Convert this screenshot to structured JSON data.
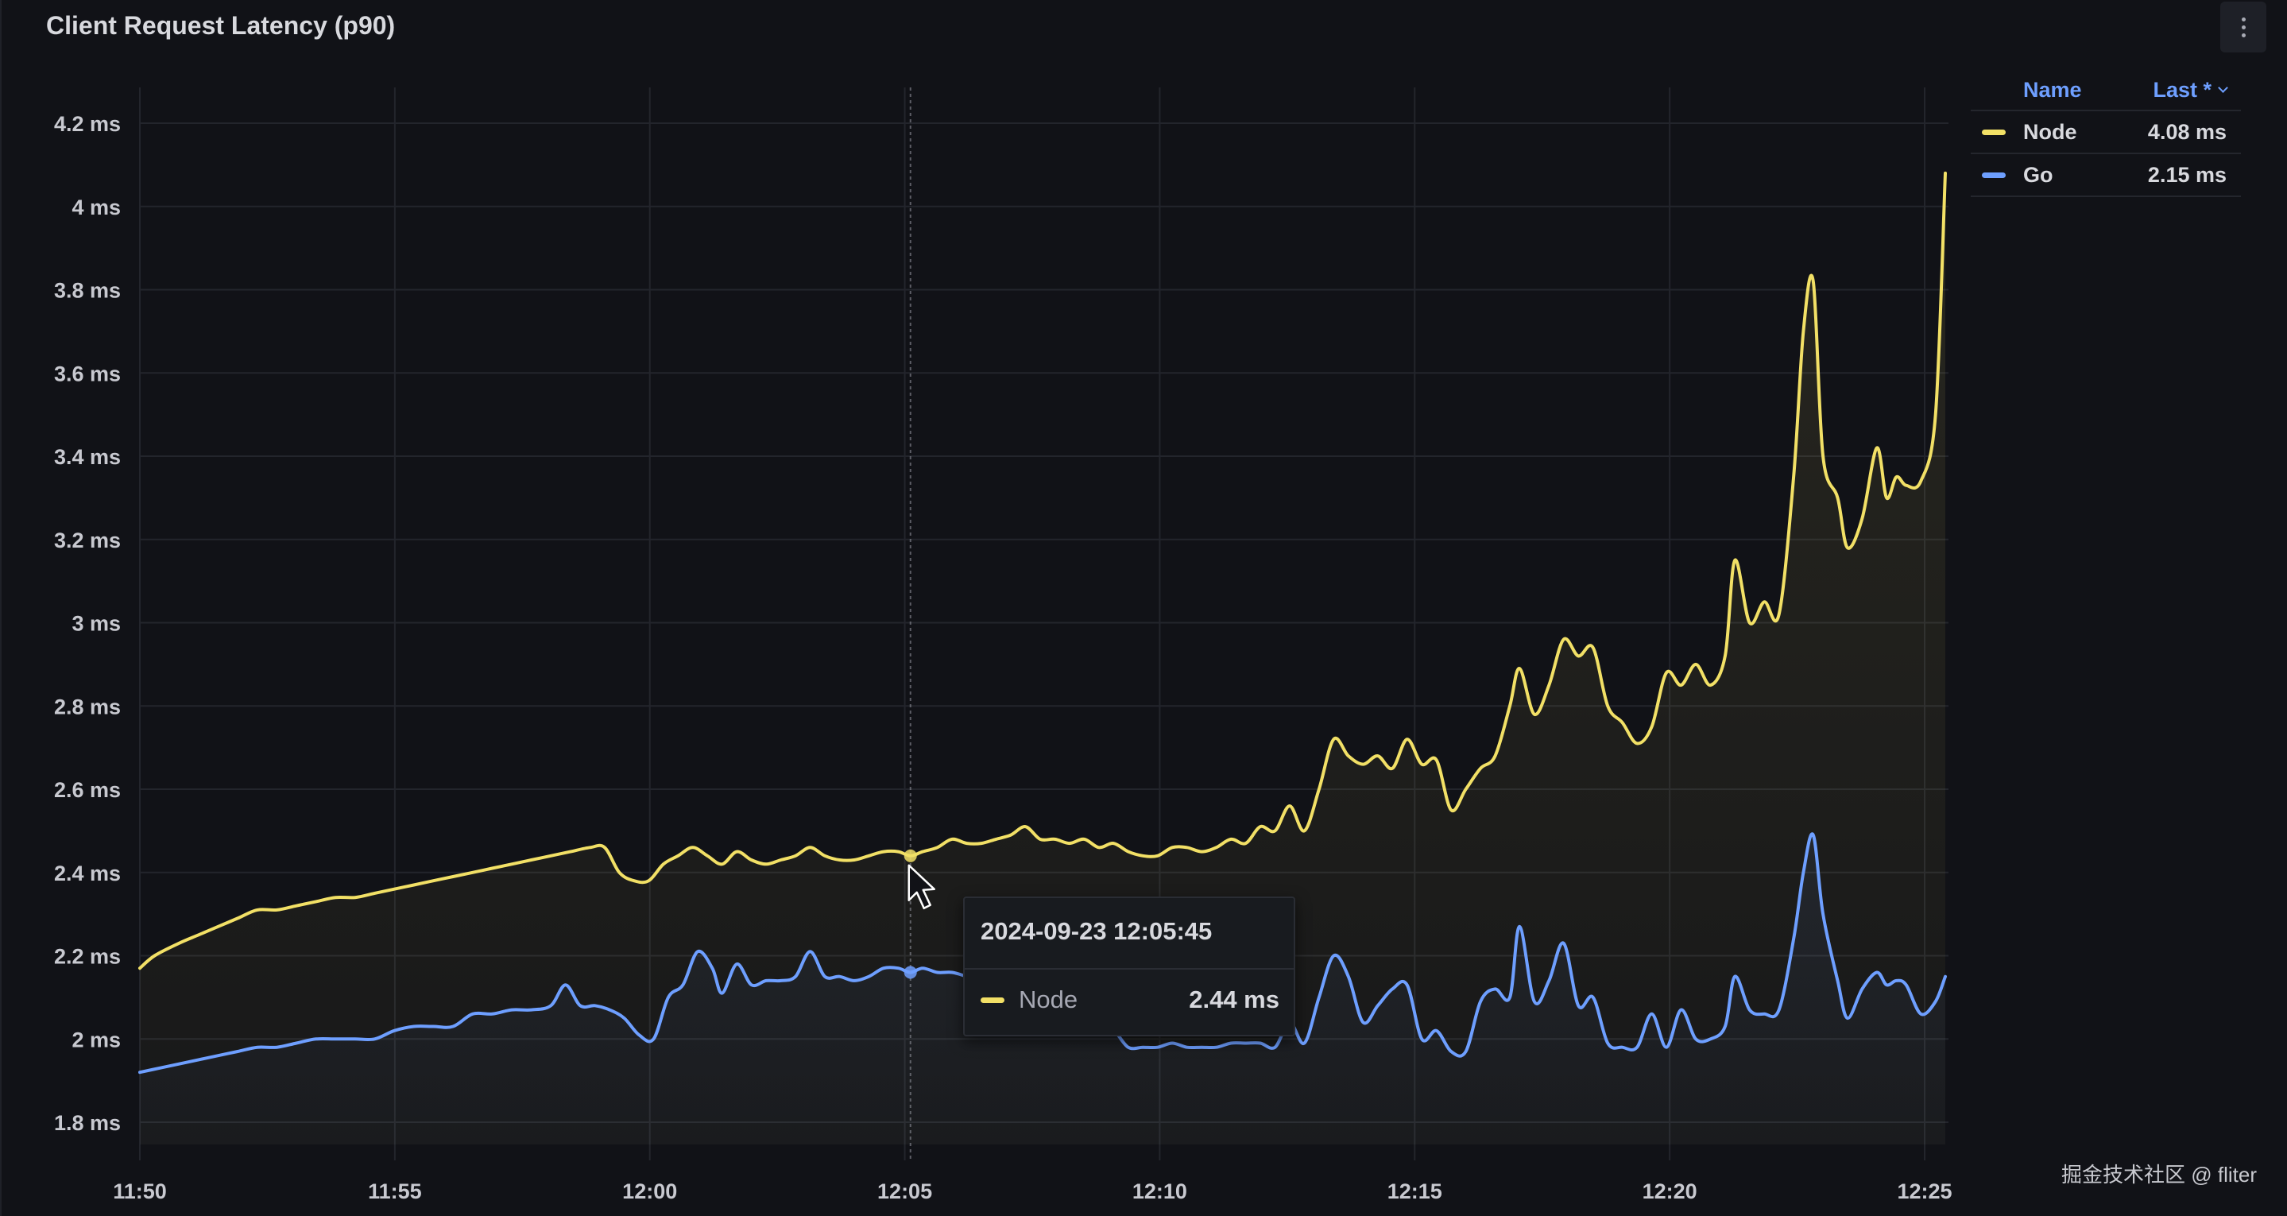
{
  "panel": {
    "title": "Client Request Latency (p90)",
    "menu_icon": "kebab-menu-icon"
  },
  "legend": {
    "name_header": "Name",
    "last_header": "Last *",
    "sort_icon": "chevron-down-icon",
    "items": [
      {
        "name": "Node",
        "value": "4.08 ms",
        "color": "#f2e066"
      },
      {
        "name": "Go",
        "value": "2.15 ms",
        "color": "#6e9fff"
      }
    ]
  },
  "tooltip": {
    "time": "2024-09-23 12:05:45",
    "series": "Node",
    "value": "2.44 ms",
    "color": "#f2e066"
  },
  "watermark": "掘金技术社区 @ fliter",
  "colors": {
    "background": "#111217",
    "grid": "#24262d",
    "node": "#f2e066",
    "go": "#6e9fff",
    "header_accent": "#6e9fff"
  },
  "chart_data": {
    "type": "line",
    "title": "Client Request Latency (p90)",
    "xlabel": "",
    "ylabel": "",
    "x_ticks": [
      "11:50",
      "11:55",
      "12:00",
      "12:05",
      "12:10",
      "12:15",
      "12:20",
      "12:25"
    ],
    "x_tick_minutes": [
      0,
      5,
      10,
      15,
      20,
      25,
      30,
      35
    ],
    "y_ticks": [
      "1.8 ms",
      "2 ms",
      "2.2 ms",
      "2.4 ms",
      "2.6 ms",
      "2.8 ms",
      "3 ms",
      "3.2 ms",
      "3.4 ms",
      "3.6 ms",
      "3.8 ms",
      "4 ms",
      "4.2 ms"
    ],
    "y_tick_values": [
      1.8,
      2.0,
      2.2,
      2.4,
      2.6,
      2.8,
      3.0,
      3.2,
      3.4,
      3.6,
      3.8,
      4.0,
      4.2
    ],
    "xlim_minutes": [
      0,
      35.4
    ],
    "ylim": [
      1.7,
      4.3
    ],
    "grid": true,
    "legend_placement": "right",
    "hover_minute": 15.75,
    "series": [
      {
        "name": "Node",
        "color": "#f2e066",
        "fill": true,
        "points": [
          [
            0.0,
            2.17
          ],
          [
            0.3,
            2.2
          ],
          [
            0.8,
            2.23
          ],
          [
            1.2,
            2.25
          ],
          [
            1.6,
            2.27
          ],
          [
            2.0,
            2.29
          ],
          [
            2.4,
            2.31
          ],
          [
            2.8,
            2.31
          ],
          [
            3.2,
            2.32
          ],
          [
            3.6,
            2.33
          ],
          [
            4.0,
            2.34
          ],
          [
            4.4,
            2.34
          ],
          [
            4.8,
            2.35
          ],
          [
            5.2,
            2.36
          ],
          [
            5.6,
            2.37
          ],
          [
            6.0,
            2.38
          ],
          [
            6.4,
            2.39
          ],
          [
            6.8,
            2.4
          ],
          [
            7.2,
            2.41
          ],
          [
            7.6,
            2.42
          ],
          [
            8.0,
            2.43
          ],
          [
            8.4,
            2.44
          ],
          [
            8.8,
            2.45
          ],
          [
            9.2,
            2.46
          ],
          [
            9.5,
            2.46
          ],
          [
            9.8,
            2.4
          ],
          [
            10.1,
            2.38
          ],
          [
            10.4,
            2.38
          ],
          [
            10.7,
            2.42
          ],
          [
            11.0,
            2.44
          ],
          [
            11.3,
            2.46
          ],
          [
            11.6,
            2.44
          ],
          [
            11.9,
            2.42
          ],
          [
            12.2,
            2.45
          ],
          [
            12.5,
            2.43
          ],
          [
            12.8,
            2.42
          ],
          [
            13.1,
            2.43
          ],
          [
            13.4,
            2.44
          ],
          [
            13.7,
            2.46
          ],
          [
            14.0,
            2.44
          ],
          [
            14.3,
            2.43
          ],
          [
            14.6,
            2.43
          ],
          [
            14.9,
            2.44
          ],
          [
            15.2,
            2.45
          ],
          [
            15.5,
            2.45
          ],
          [
            15.75,
            2.44
          ],
          [
            16.0,
            2.45
          ],
          [
            16.3,
            2.46
          ],
          [
            16.6,
            2.48
          ],
          [
            16.9,
            2.47
          ],
          [
            17.2,
            2.47
          ],
          [
            17.5,
            2.48
          ],
          [
            17.8,
            2.49
          ],
          [
            18.1,
            2.51
          ],
          [
            18.4,
            2.48
          ],
          [
            18.7,
            2.48
          ],
          [
            19.0,
            2.47
          ],
          [
            19.3,
            2.48
          ],
          [
            19.6,
            2.46
          ],
          [
            19.9,
            2.47
          ],
          [
            20.2,
            2.45
          ],
          [
            20.5,
            2.44
          ],
          [
            20.8,
            2.44
          ],
          [
            21.1,
            2.46
          ],
          [
            21.4,
            2.46
          ],
          [
            21.7,
            2.45
          ],
          [
            22.0,
            2.46
          ],
          [
            22.3,
            2.48
          ],
          [
            22.6,
            2.47
          ],
          [
            22.9,
            2.51
          ],
          [
            23.2,
            2.5
          ],
          [
            23.5,
            2.56
          ],
          [
            23.8,
            2.5
          ],
          [
            24.1,
            2.6
          ],
          [
            24.4,
            2.72
          ],
          [
            24.7,
            2.68
          ],
          [
            25.0,
            2.66
          ],
          [
            25.3,
            2.68
          ],
          [
            25.6,
            2.65
          ],
          [
            25.9,
            2.72
          ],
          [
            26.2,
            2.66
          ],
          [
            26.5,
            2.67
          ],
          [
            26.8,
            2.55
          ],
          [
            27.1,
            2.6
          ],
          [
            27.4,
            2.65
          ],
          [
            27.7,
            2.68
          ],
          [
            28.0,
            2.8
          ],
          [
            28.2,
            2.89
          ],
          [
            28.5,
            2.78
          ],
          [
            28.8,
            2.85
          ],
          [
            29.1,
            2.96
          ],
          [
            29.4,
            2.92
          ],
          [
            29.7,
            2.94
          ],
          [
            30.0,
            2.8
          ],
          [
            30.3,
            2.76
          ],
          [
            30.6,
            2.71
          ],
          [
            30.9,
            2.75
          ],
          [
            31.2,
            2.88
          ],
          [
            31.5,
            2.85
          ],
          [
            31.8,
            2.9
          ],
          [
            32.1,
            2.85
          ],
          [
            32.4,
            2.92
          ],
          [
            32.6,
            3.15
          ],
          [
            32.9,
            3.0
          ],
          [
            33.2,
            3.05
          ],
          [
            33.5,
            3.02
          ],
          [
            33.8,
            3.35
          ],
          [
            34.0,
            3.7
          ],
          [
            34.2,
            3.82
          ],
          [
            34.4,
            3.4
          ],
          [
            34.7,
            3.3
          ],
          [
            34.9,
            3.18
          ],
          [
            35.2,
            3.25
          ],
          [
            35.5,
            3.42
          ],
          [
            35.7,
            3.3
          ],
          [
            35.9,
            3.35
          ],
          [
            36.1,
            3.33
          ],
          [
            36.4,
            3.34
          ],
          [
            36.7,
            3.5
          ],
          [
            36.9,
            4.08
          ]
        ]
      },
      {
        "name": "Go",
        "color": "#6e9fff",
        "fill": true,
        "points": [
          [
            0.0,
            1.92
          ],
          [
            0.4,
            1.93
          ],
          [
            0.8,
            1.94
          ],
          [
            1.2,
            1.95
          ],
          [
            1.6,
            1.96
          ],
          [
            2.0,
            1.97
          ],
          [
            2.4,
            1.98
          ],
          [
            2.8,
            1.98
          ],
          [
            3.2,
            1.99
          ],
          [
            3.6,
            2.0
          ],
          [
            4.0,
            2.0
          ],
          [
            4.4,
            2.0
          ],
          [
            4.8,
            2.0
          ],
          [
            5.2,
            2.02
          ],
          [
            5.6,
            2.03
          ],
          [
            6.0,
            2.03
          ],
          [
            6.4,
            2.03
          ],
          [
            6.8,
            2.06
          ],
          [
            7.2,
            2.06
          ],
          [
            7.6,
            2.07
          ],
          [
            8.0,
            2.07
          ],
          [
            8.4,
            2.08
          ],
          [
            8.7,
            2.13
          ],
          [
            9.0,
            2.08
          ],
          [
            9.3,
            2.08
          ],
          [
            9.6,
            2.07
          ],
          [
            9.9,
            2.05
          ],
          [
            10.2,
            2.01
          ],
          [
            10.5,
            2.0
          ],
          [
            10.8,
            2.1
          ],
          [
            11.1,
            2.13
          ],
          [
            11.4,
            2.21
          ],
          [
            11.7,
            2.17
          ],
          [
            11.9,
            2.11
          ],
          [
            12.2,
            2.18
          ],
          [
            12.5,
            2.13
          ],
          [
            12.8,
            2.14
          ],
          [
            13.1,
            2.14
          ],
          [
            13.4,
            2.15
          ],
          [
            13.7,
            2.21
          ],
          [
            14.0,
            2.15
          ],
          [
            14.3,
            2.15
          ],
          [
            14.6,
            2.14
          ],
          [
            14.9,
            2.15
          ],
          [
            15.2,
            2.17
          ],
          [
            15.5,
            2.17
          ],
          [
            15.75,
            2.16
          ],
          [
            16.0,
            2.17
          ],
          [
            16.3,
            2.16
          ],
          [
            16.6,
            2.16
          ],
          [
            16.9,
            2.15
          ],
          [
            17.2,
            2.14
          ],
          [
            17.5,
            2.13
          ],
          [
            17.8,
            2.12
          ],
          [
            18.1,
            2.1
          ],
          [
            18.4,
            2.08
          ],
          [
            18.7,
            2.06
          ],
          [
            19.0,
            2.04
          ],
          [
            19.3,
            2.03
          ],
          [
            19.6,
            2.02
          ],
          [
            19.9,
            2.02
          ],
          [
            20.2,
            1.98
          ],
          [
            20.5,
            1.98
          ],
          [
            20.8,
            1.98
          ],
          [
            21.1,
            1.99
          ],
          [
            21.4,
            1.98
          ],
          [
            21.7,
            1.98
          ],
          [
            22.0,
            1.98
          ],
          [
            22.3,
            1.99
          ],
          [
            22.6,
            1.99
          ],
          [
            22.9,
            1.99
          ],
          [
            23.2,
            1.98
          ],
          [
            23.5,
            2.04
          ],
          [
            23.8,
            1.99
          ],
          [
            24.1,
            2.1
          ],
          [
            24.4,
            2.2
          ],
          [
            24.7,
            2.15
          ],
          [
            25.0,
            2.04
          ],
          [
            25.3,
            2.08
          ],
          [
            25.6,
            2.12
          ],
          [
            25.9,
            2.13
          ],
          [
            26.2,
            2.0
          ],
          [
            26.5,
            2.02
          ],
          [
            26.8,
            1.97
          ],
          [
            27.1,
            1.97
          ],
          [
            27.4,
            2.09
          ],
          [
            27.7,
            2.12
          ],
          [
            28.0,
            2.1
          ],
          [
            28.2,
            2.27
          ],
          [
            28.5,
            2.09
          ],
          [
            28.8,
            2.14
          ],
          [
            29.1,
            2.23
          ],
          [
            29.4,
            2.08
          ],
          [
            29.7,
            2.1
          ],
          [
            30.0,
            1.99
          ],
          [
            30.3,
            1.98
          ],
          [
            30.6,
            1.98
          ],
          [
            30.9,
            2.06
          ],
          [
            31.2,
            1.98
          ],
          [
            31.5,
            2.07
          ],
          [
            31.8,
            2.0
          ],
          [
            32.1,
            2.0
          ],
          [
            32.4,
            2.03
          ],
          [
            32.6,
            2.15
          ],
          [
            32.9,
            2.07
          ],
          [
            33.2,
            2.06
          ],
          [
            33.5,
            2.07
          ],
          [
            33.8,
            2.24
          ],
          [
            34.0,
            2.4
          ],
          [
            34.2,
            2.49
          ],
          [
            34.4,
            2.3
          ],
          [
            34.7,
            2.14
          ],
          [
            34.9,
            2.05
          ],
          [
            35.2,
            2.12
          ],
          [
            35.5,
            2.16
          ],
          [
            35.7,
            2.13
          ],
          [
            35.9,
            2.14
          ],
          [
            36.1,
            2.13
          ],
          [
            36.4,
            2.06
          ],
          [
            36.7,
            2.09
          ],
          [
            36.9,
            2.15
          ]
        ]
      }
    ]
  }
}
